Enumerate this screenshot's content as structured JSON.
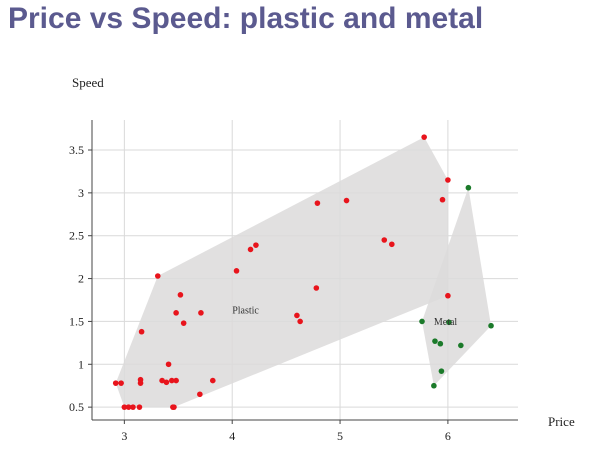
{
  "title": "Price vs Speed: plastic and metal",
  "chart_data": {
    "type": "scatter",
    "title": "Price vs Speed: plastic and metal",
    "xlabel": "Price",
    "ylabel": "Speed",
    "xlim": [
      2.7,
      6.65
    ],
    "ylim": [
      0.35,
      3.85
    ],
    "xticks": [
      3,
      4,
      5,
      6
    ],
    "yticks": [
      0.5,
      1,
      1.5,
      2,
      2.5,
      3,
      3.5
    ],
    "xtick_labels": [
      "3",
      "4",
      "5",
      "6"
    ],
    "ytick_labels": [
      "0.5",
      "1",
      "1.5",
      "2",
      "2.5",
      "3",
      "3.5"
    ],
    "grid": true,
    "series": [
      {
        "name": "Plastic",
        "color": "#e8141c",
        "hull_color": "#dcdbdb",
        "label_at": [
          4.0,
          1.59
        ],
        "points": [
          [
            2.92,
            0.78
          ],
          [
            2.97,
            0.78
          ],
          [
            3.0,
            0.5
          ],
          [
            3.04,
            0.5
          ],
          [
            3.08,
            0.5
          ],
          [
            3.14,
            0.5
          ],
          [
            3.15,
            0.78
          ],
          [
            3.15,
            0.82
          ],
          [
            3.16,
            1.38
          ],
          [
            3.31,
            2.03
          ],
          [
            3.35,
            0.81
          ],
          [
            3.39,
            0.79
          ],
          [
            3.41,
            1.0
          ],
          [
            3.44,
            0.81
          ],
          [
            3.45,
            0.5
          ],
          [
            3.46,
            0.5
          ],
          [
            3.48,
            0.81
          ],
          [
            3.48,
            1.6
          ],
          [
            3.52,
            1.81
          ],
          [
            3.55,
            1.48
          ],
          [
            3.7,
            0.65
          ],
          [
            3.71,
            1.6
          ],
          [
            3.82,
            0.81
          ],
          [
            4.04,
            2.09
          ],
          [
            4.17,
            2.34
          ],
          [
            4.22,
            2.39
          ],
          [
            4.6,
            1.57
          ],
          [
            4.63,
            1.5
          ],
          [
            4.78,
            1.89
          ],
          [
            4.79,
            2.88
          ],
          [
            5.06,
            2.91
          ],
          [
            5.41,
            2.45
          ],
          [
            5.48,
            2.4
          ],
          [
            5.78,
            3.65
          ],
          [
            5.95,
            2.92
          ],
          [
            6.0,
            1.8
          ],
          [
            6.0,
            3.15
          ]
        ]
      },
      {
        "name": "Metal",
        "color": "#1b7a2a",
        "hull_color": "#dcdbdb",
        "label_at": [
          5.87,
          1.46
        ],
        "points": [
          [
            5.76,
            1.5
          ],
          [
            5.87,
            0.75
          ],
          [
            5.88,
            1.27
          ],
          [
            5.93,
            1.24
          ],
          [
            5.94,
            0.92
          ],
          [
            6.01,
            1.49
          ],
          [
            6.12,
            1.22
          ],
          [
            6.19,
            3.06
          ],
          [
            6.4,
            1.45
          ]
        ]
      }
    ]
  }
}
